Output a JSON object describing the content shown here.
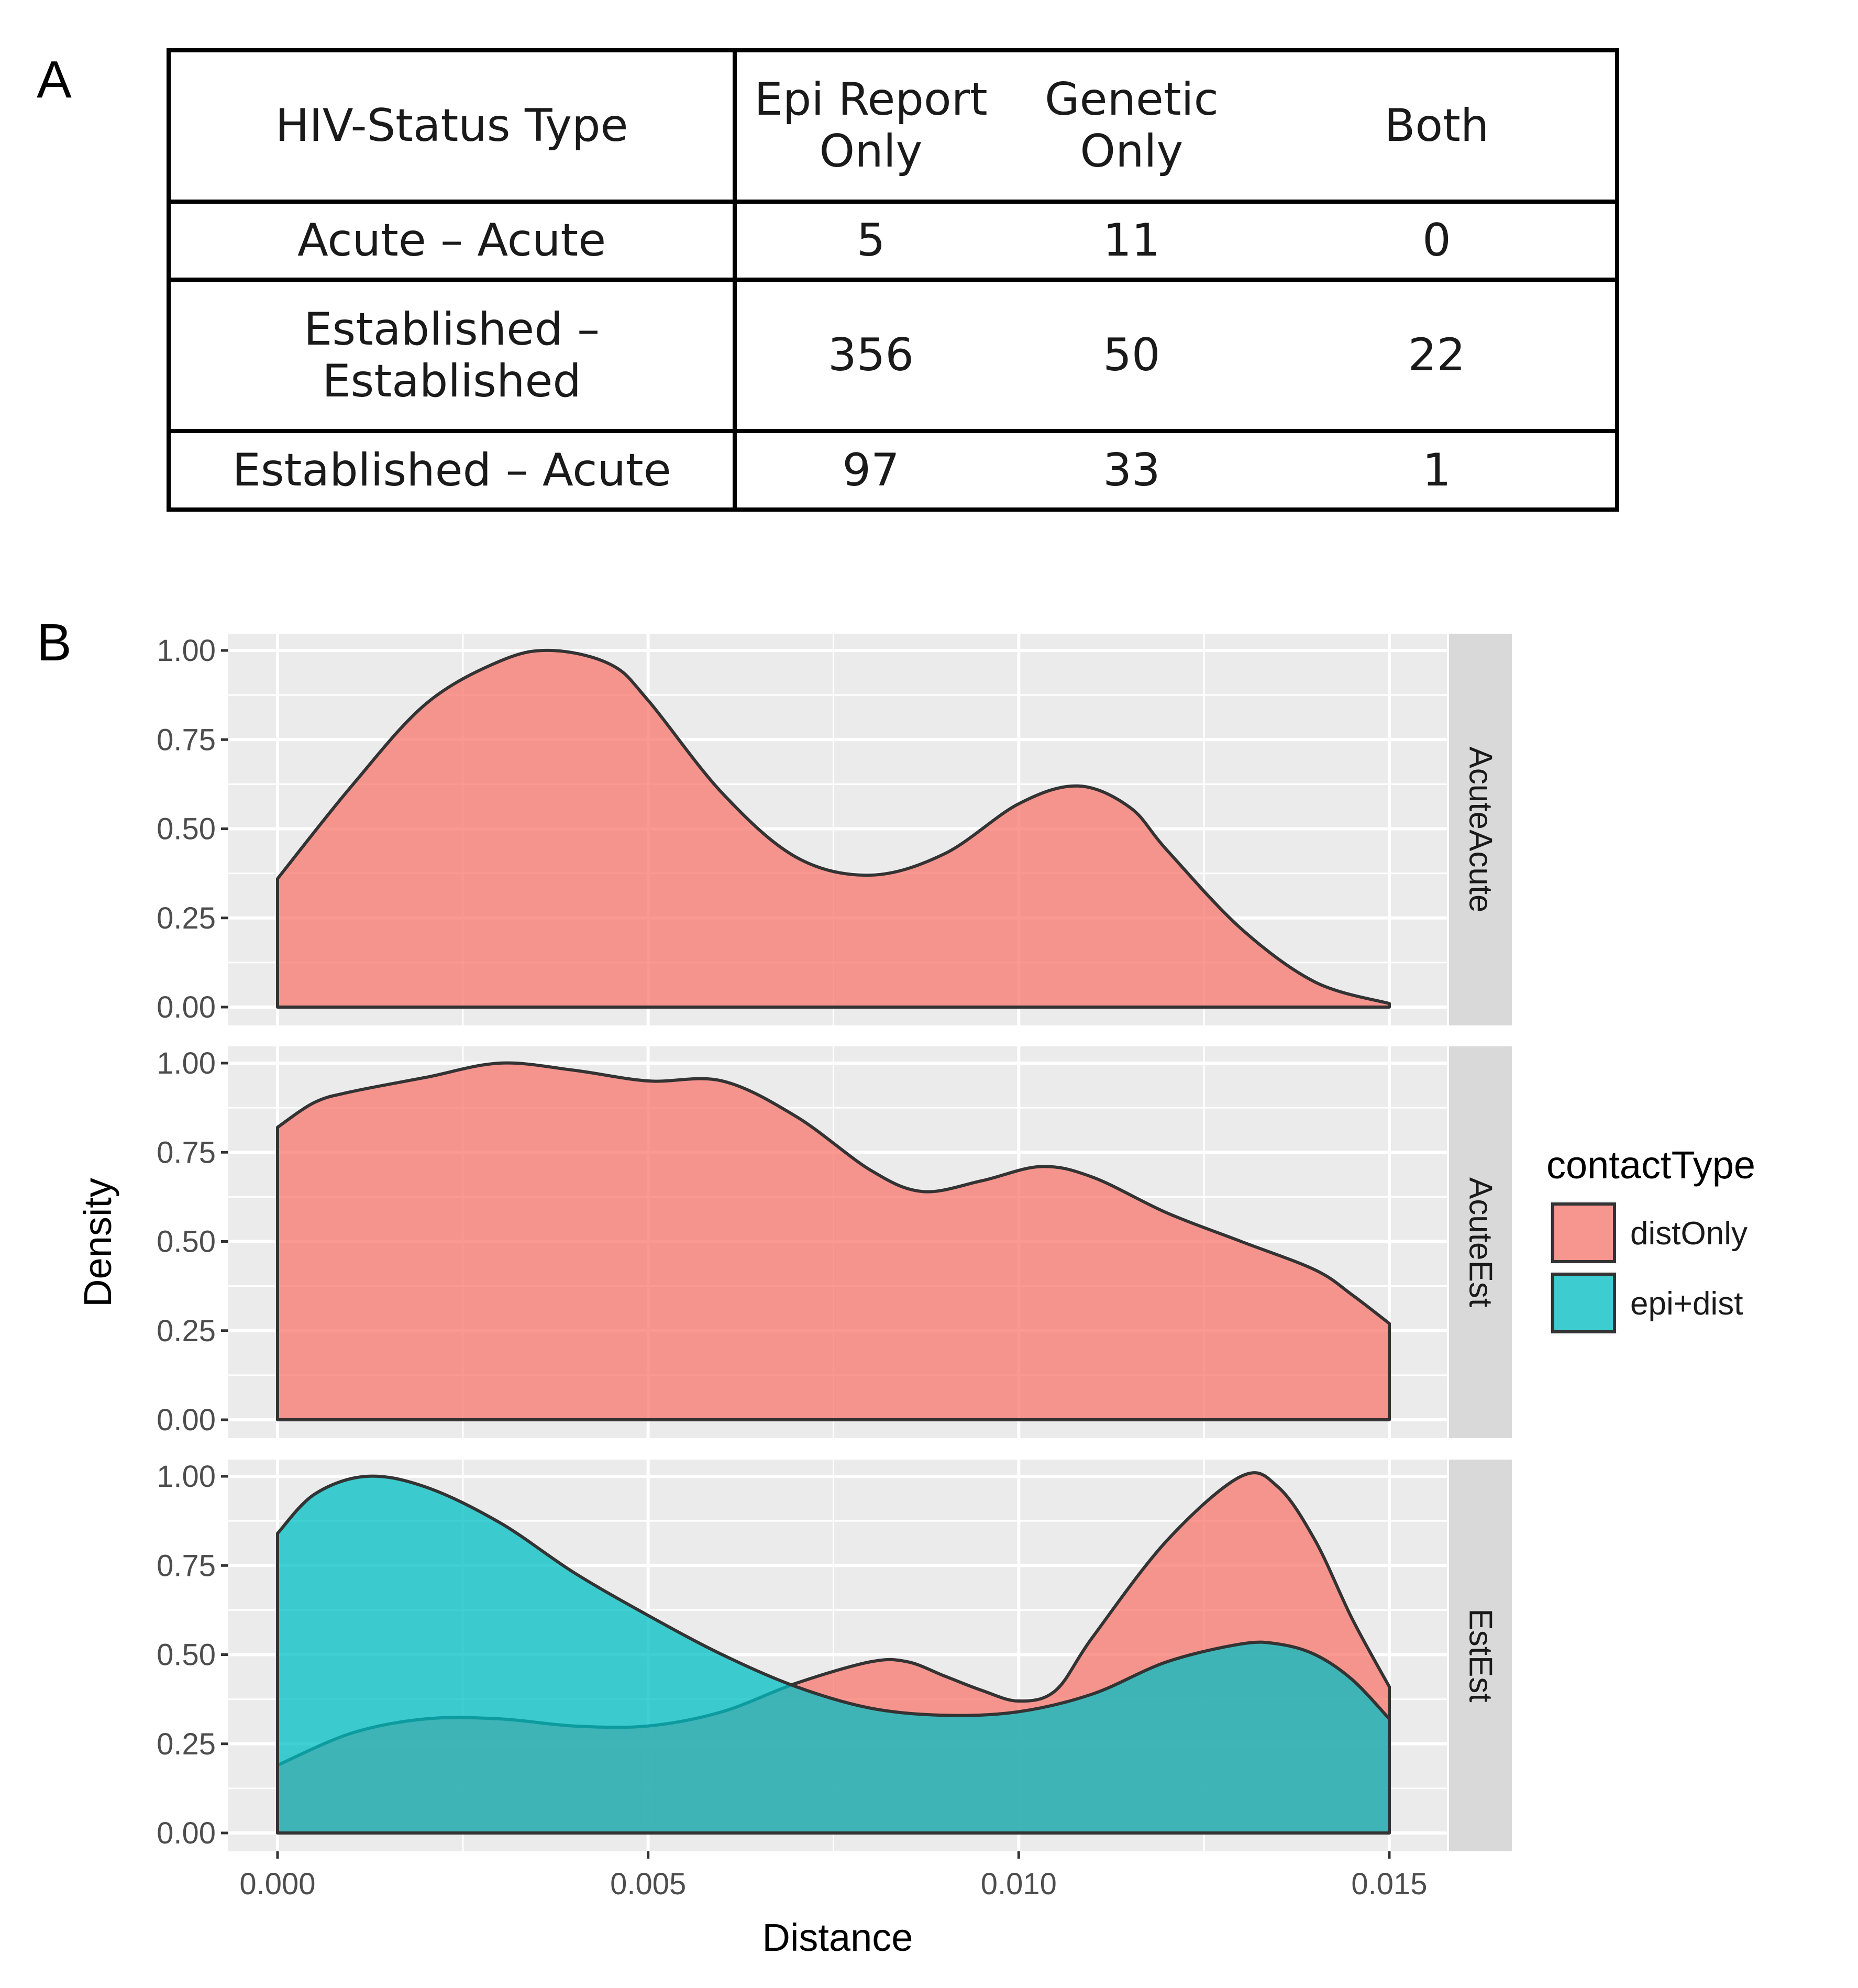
{
  "panel_a": {
    "letter": "A",
    "table": {
      "headers": [
        "HIV-Status Type",
        "Epi Report\nOnly",
        "Genetic\nOnly",
        "Both"
      ],
      "rows": [
        [
          "Acute – Acute",
          "5",
          "11",
          "0"
        ],
        [
          "Established – Established",
          "356",
          "50",
          "22"
        ],
        [
          "Established – Acute",
          "97",
          "33",
          "1"
        ]
      ]
    }
  },
  "panel_b": {
    "letter": "B"
  },
  "colors": {
    "distOnly": "#F8766D",
    "epi_dist": "#00BFC4",
    "panel_bg": "#EBEBEB",
    "strip_bg": "#D9D9D9",
    "outline": "#333333"
  },
  "chart_data": {
    "type": "area",
    "xlabel": "Distance",
    "ylabel": "Density",
    "xlim": [
      0,
      0.015
    ],
    "ylim": [
      0,
      1
    ],
    "x_ticks": [
      "0.000",
      "0.005",
      "0.010",
      "0.015"
    ],
    "y_ticks": [
      "0.00",
      "0.25",
      "0.50",
      "0.75",
      "1.00"
    ],
    "legend": {
      "title": "contactType",
      "entries": [
        "distOnly",
        "epi+dist"
      ],
      "position": "right"
    },
    "facets": [
      {
        "strip": "AcuteAcute",
        "series": [
          {
            "name": "distOnly",
            "color_key": "distOnly",
            "points": [
              [
                0,
                0.36
              ],
              [
                0.001,
                0.62
              ],
              [
                0.002,
                0.85
              ],
              [
                0.003,
                0.97
              ],
              [
                0.0037,
                1.0
              ],
              [
                0.0045,
                0.96
              ],
              [
                0.005,
                0.86
              ],
              [
                0.006,
                0.6
              ],
              [
                0.007,
                0.42
              ],
              [
                0.008,
                0.37
              ],
              [
                0.009,
                0.43
              ],
              [
                0.01,
                0.57
              ],
              [
                0.0108,
                0.62
              ],
              [
                0.0115,
                0.56
              ],
              [
                0.012,
                0.44
              ],
              [
                0.013,
                0.22
              ],
              [
                0.014,
                0.07
              ],
              [
                0.015,
                0.01
              ]
            ]
          }
        ]
      },
      {
        "strip": "AcuteEst",
        "series": [
          {
            "name": "distOnly",
            "color_key": "distOnly",
            "points": [
              [
                0,
                0.82
              ],
              [
                0.0005,
                0.89
              ],
              [
                0.001,
                0.92
              ],
              [
                0.002,
                0.96
              ],
              [
                0.003,
                1.0
              ],
              [
                0.004,
                0.98
              ],
              [
                0.005,
                0.95
              ],
              [
                0.006,
                0.95
              ],
              [
                0.007,
                0.85
              ],
              [
                0.008,
                0.7
              ],
              [
                0.0087,
                0.64
              ],
              [
                0.0095,
                0.67
              ],
              [
                0.0103,
                0.71
              ],
              [
                0.011,
                0.68
              ],
              [
                0.012,
                0.58
              ],
              [
                0.013,
                0.5
              ],
              [
                0.014,
                0.42
              ],
              [
                0.0145,
                0.35
              ],
              [
                0.015,
                0.27
              ]
            ]
          }
        ]
      },
      {
        "strip": "EstEst",
        "series": [
          {
            "name": "distOnly",
            "color_key": "distOnly",
            "points": [
              [
                0,
                0.19
              ],
              [
                0.001,
                0.28
              ],
              [
                0.002,
                0.32
              ],
              [
                0.003,
                0.32
              ],
              [
                0.004,
                0.3
              ],
              [
                0.005,
                0.3
              ],
              [
                0.006,
                0.34
              ],
              [
                0.007,
                0.42
              ],
              [
                0.008,
                0.48
              ],
              [
                0.0085,
                0.48
              ],
              [
                0.009,
                0.44
              ],
              [
                0.0095,
                0.4
              ],
              [
                0.01,
                0.37
              ],
              [
                0.0105,
                0.4
              ],
              [
                0.011,
                0.55
              ],
              [
                0.012,
                0.82
              ],
              [
                0.013,
                1.0
              ],
              [
                0.0135,
                0.97
              ],
              [
                0.014,
                0.82
              ],
              [
                0.0145,
                0.6
              ],
              [
                0.015,
                0.41
              ]
            ]
          },
          {
            "name": "epi+dist",
            "color_key": "epi_dist",
            "points": [
              [
                0,
                0.84
              ],
              [
                0.0005,
                0.95
              ],
              [
                0.0012,
                1.0
              ],
              [
                0.002,
                0.97
              ],
              [
                0.003,
                0.87
              ],
              [
                0.004,
                0.73
              ],
              [
                0.005,
                0.61
              ],
              [
                0.006,
                0.5
              ],
              [
                0.007,
                0.41
              ],
              [
                0.008,
                0.35
              ],
              [
                0.009,
                0.33
              ],
              [
                0.01,
                0.34
              ],
              [
                0.011,
                0.39
              ],
              [
                0.012,
                0.48
              ],
              [
                0.013,
                0.53
              ],
              [
                0.0135,
                0.53
              ],
              [
                0.014,
                0.5
              ],
              [
                0.0145,
                0.43
              ],
              [
                0.015,
                0.32
              ]
            ]
          }
        ]
      }
    ]
  }
}
